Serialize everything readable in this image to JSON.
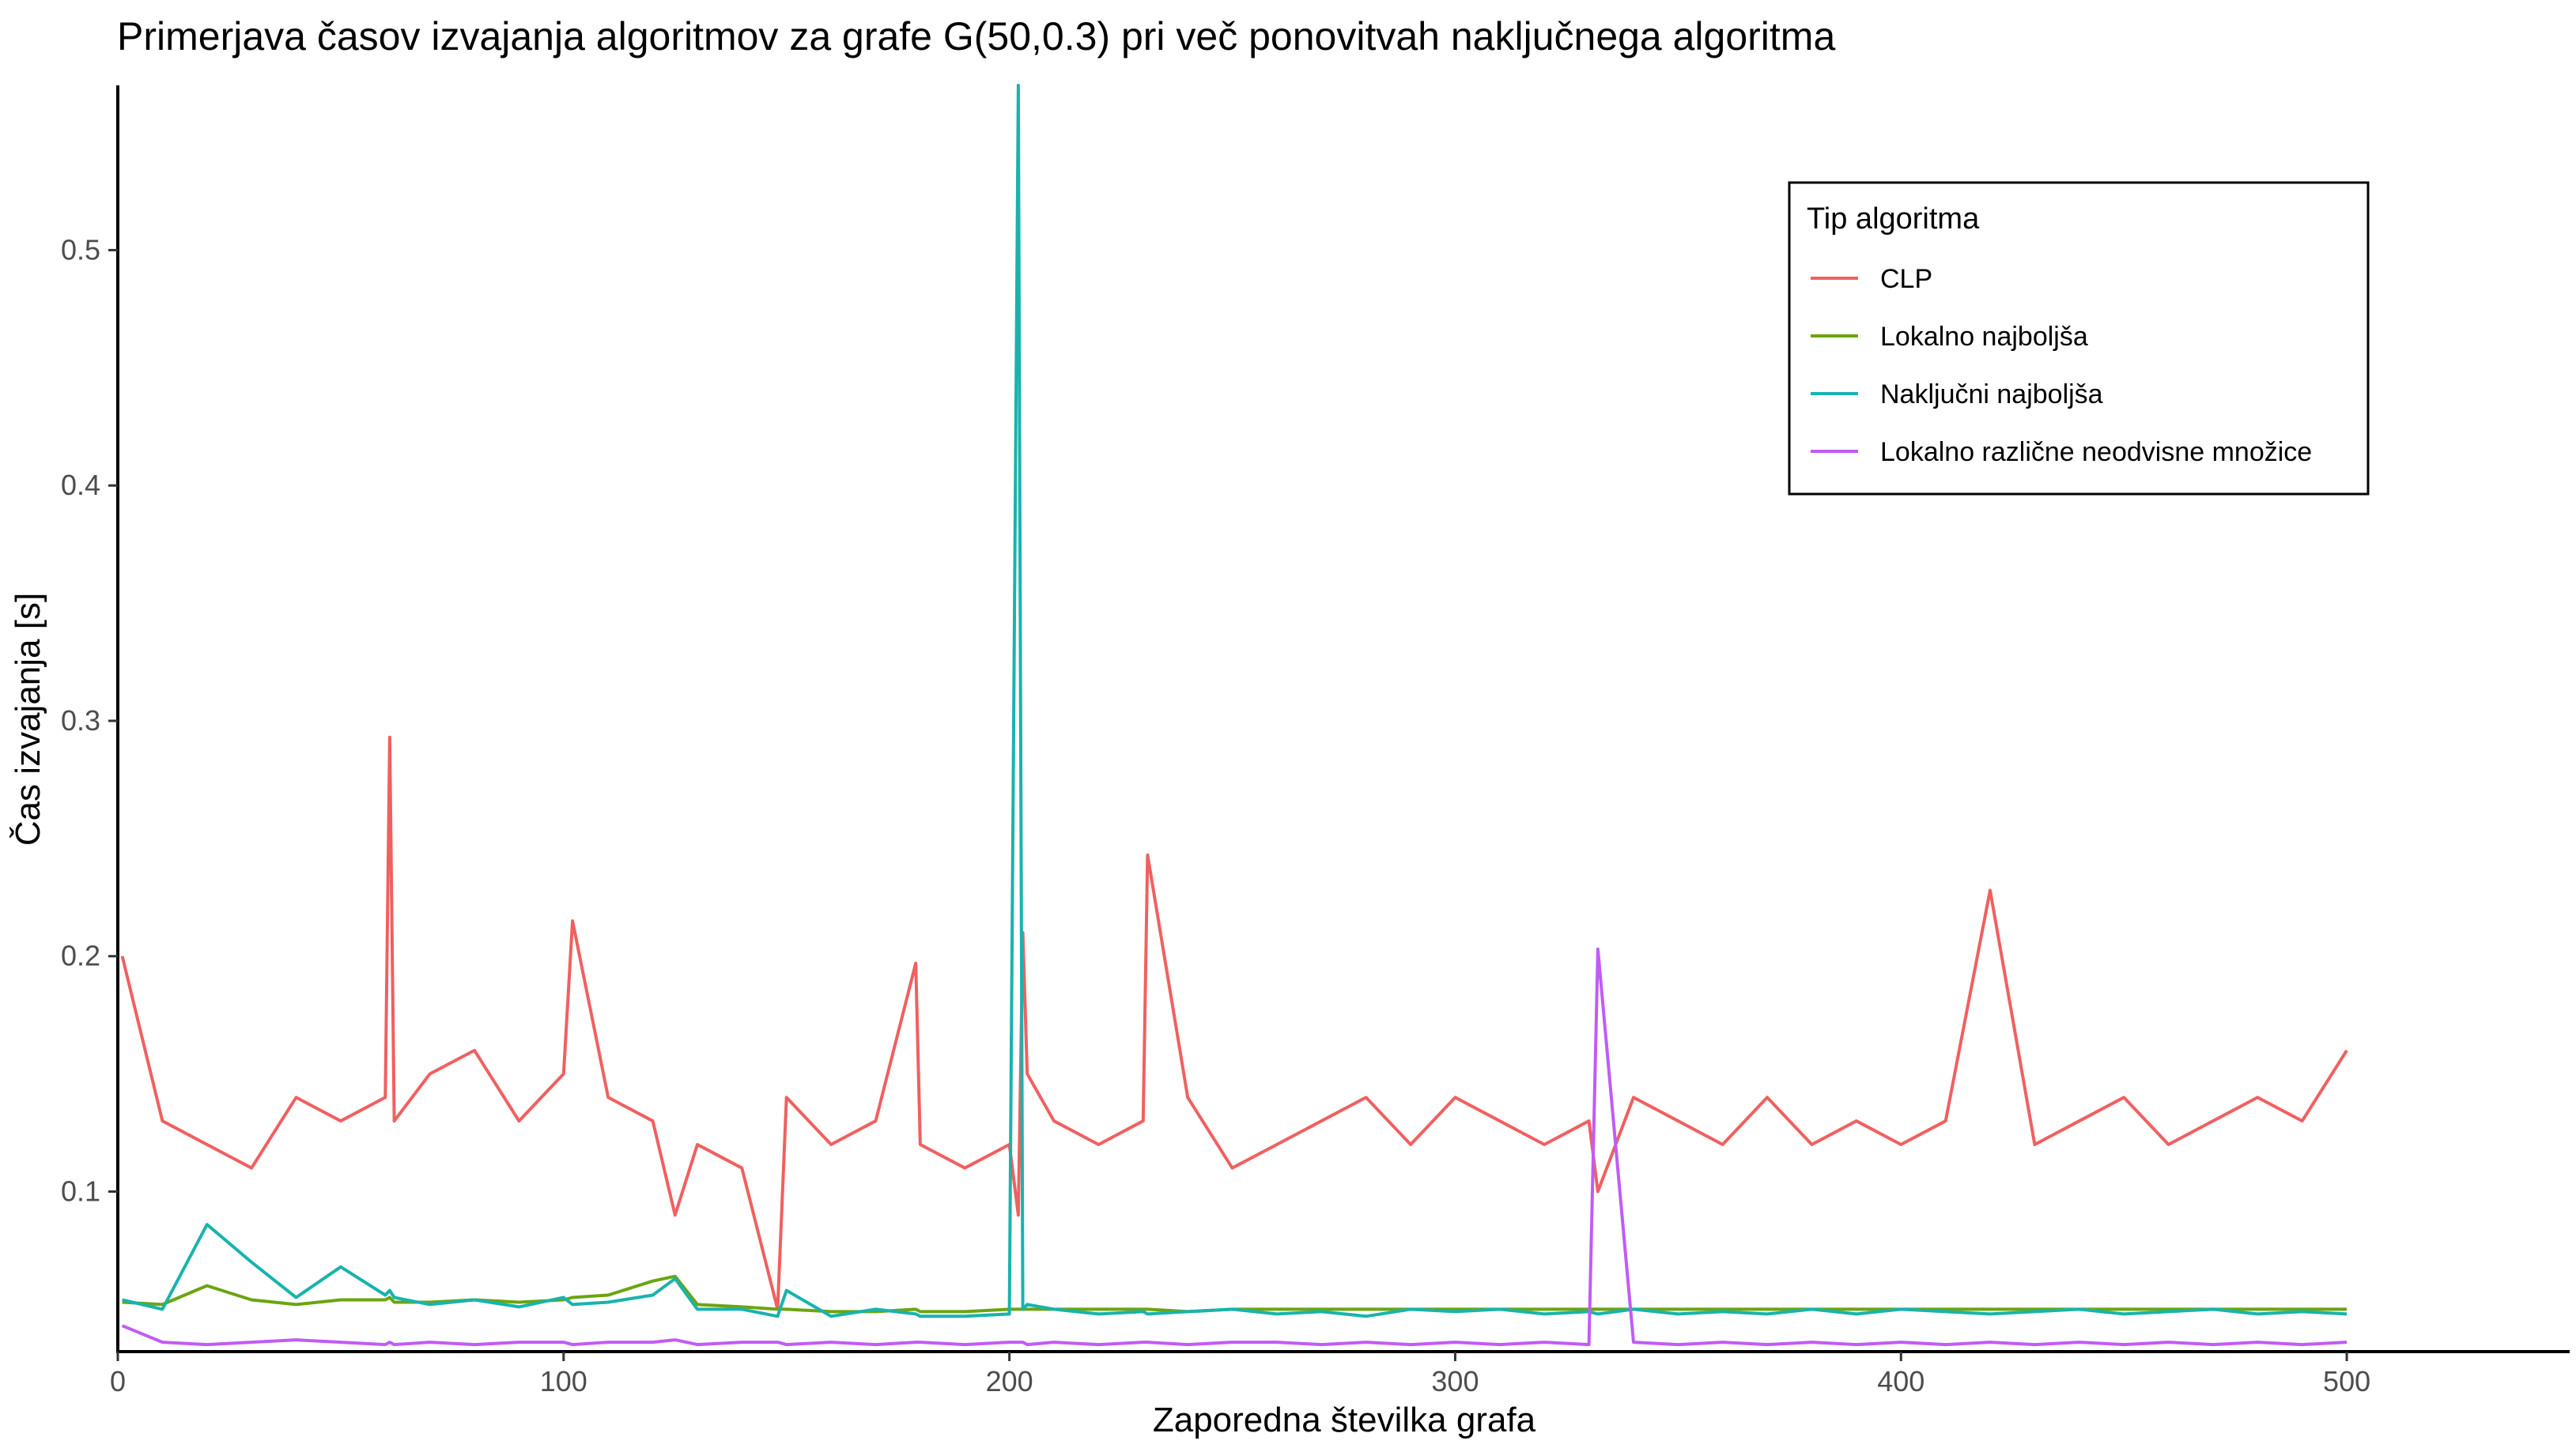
{
  "chart_data": {
    "type": "line",
    "title": "Primerjava časov izvajanja algoritmov za grafe G(50,0.3) pri več ponovitvah naključnega algoritma",
    "xlabel": "Zaporedna številka grafa",
    "ylabel": "Čas izvajanja [s]",
    "xlim": [
      0,
      550
    ],
    "ylim": [
      0.032,
      0.57
    ],
    "x_ticks": [
      0,
      100,
      200,
      300,
      400,
      500
    ],
    "x_tick_labels": [
      "0",
      "100",
      "200",
      "300",
      "400",
      "500"
    ],
    "y_ticks": [
      0.1,
      0.2,
      0.3,
      0.4,
      0.5
    ],
    "y_tick_labels": [
      "0.1",
      "0.2",
      "0.3",
      "0.4",
      "0.5"
    ],
    "grid": false,
    "legend": {
      "title": "Tip algoritma",
      "position": "top-right"
    },
    "x": [
      1,
      10,
      20,
      30,
      40,
      50,
      60,
      61,
      62,
      70,
      80,
      90,
      100,
      102,
      110,
      120,
      125,
      130,
      140,
      148,
      150,
      160,
      170,
      179,
      180,
      190,
      200,
      202,
      203,
      204,
      210,
      220,
      230,
      231,
      240,
      250,
      260,
      270,
      280,
      290,
      300,
      310,
      320,
      330,
      332,
      340,
      350,
      360,
      370,
      380,
      390,
      400,
      410,
      420,
      430,
      440,
      450,
      460,
      470,
      480,
      490,
      500
    ],
    "series": [
      {
        "name": "CLP",
        "color": "#f06060",
        "values": [
          0.2,
          0.13,
          0.12,
          0.11,
          0.14,
          0.13,
          0.14,
          0.293,
          0.13,
          0.15,
          0.16,
          0.13,
          0.15,
          0.215,
          0.14,
          0.13,
          0.09,
          0.12,
          0.11,
          0.05,
          0.14,
          0.12,
          0.13,
          0.197,
          0.12,
          0.11,
          0.12,
          0.09,
          0.21,
          0.15,
          0.13,
          0.12,
          0.13,
          0.243,
          0.14,
          0.11,
          0.12,
          0.13,
          0.14,
          0.12,
          0.14,
          0.13,
          0.12,
          0.13,
          0.1,
          0.14,
          0.13,
          0.12,
          0.14,
          0.12,
          0.13,
          0.12,
          0.13,
          0.228,
          0.12,
          0.13,
          0.14,
          0.12,
          0.13,
          0.14,
          0.13,
          0.16
        ]
      },
      {
        "name": "Lokalno najboljša",
        "color": "#6aa512",
        "values": [
          0.053,
          0.052,
          0.06,
          0.054,
          0.052,
          0.054,
          0.054,
          0.055,
          0.053,
          0.053,
          0.054,
          0.053,
          0.054,
          0.055,
          0.056,
          0.062,
          0.064,
          0.052,
          0.051,
          0.05,
          0.05,
          0.049,
          0.049,
          0.05,
          0.049,
          0.049,
          0.05,
          0.05,
          0.05,
          0.05,
          0.05,
          0.05,
          0.05,
          0.05,
          0.049,
          0.05,
          0.05,
          0.05,
          0.05,
          0.05,
          0.05,
          0.05,
          0.05,
          0.05,
          0.05,
          0.05,
          0.05,
          0.05,
          0.05,
          0.05,
          0.05,
          0.05,
          0.05,
          0.05,
          0.05,
          0.05,
          0.05,
          0.05,
          0.05,
          0.05,
          0.05,
          0.05
        ]
      },
      {
        "name": "Naključni najboljša",
        "color": "#19b3ad",
        "values": [
          0.054,
          0.05,
          0.086,
          0.07,
          0.055,
          0.068,
          0.056,
          0.058,
          0.055,
          0.052,
          0.054,
          0.051,
          0.055,
          0.052,
          0.053,
          0.056,
          0.063,
          0.05,
          0.05,
          0.047,
          0.058,
          0.047,
          0.05,
          0.048,
          0.047,
          0.047,
          0.048,
          0.57,
          0.05,
          0.052,
          0.05,
          0.048,
          0.049,
          0.048,
          0.049,
          0.05,
          0.048,
          0.049,
          0.047,
          0.05,
          0.049,
          0.05,
          0.048,
          0.049,
          0.048,
          0.05,
          0.048,
          0.049,
          0.048,
          0.05,
          0.048,
          0.05,
          0.049,
          0.048,
          0.049,
          0.05,
          0.048,
          0.049,
          0.05,
          0.048,
          0.049,
          0.048
        ]
      },
      {
        "name": "Lokalno različne neodvisne množice",
        "color": "#c05cf5",
        "values": [
          0.043,
          0.036,
          0.035,
          0.036,
          0.037,
          0.036,
          0.035,
          0.036,
          0.035,
          0.036,
          0.035,
          0.036,
          0.036,
          0.035,
          0.036,
          0.036,
          0.037,
          0.035,
          0.036,
          0.036,
          0.035,
          0.036,
          0.035,
          0.036,
          0.036,
          0.035,
          0.036,
          0.036,
          0.036,
          0.035,
          0.036,
          0.035,
          0.036,
          0.036,
          0.035,
          0.036,
          0.036,
          0.035,
          0.036,
          0.035,
          0.036,
          0.035,
          0.036,
          0.035,
          0.203,
          0.036,
          0.035,
          0.036,
          0.035,
          0.036,
          0.035,
          0.036,
          0.035,
          0.036,
          0.035,
          0.036,
          0.035,
          0.036,
          0.035,
          0.036,
          0.035,
          0.036
        ]
      }
    ]
  }
}
